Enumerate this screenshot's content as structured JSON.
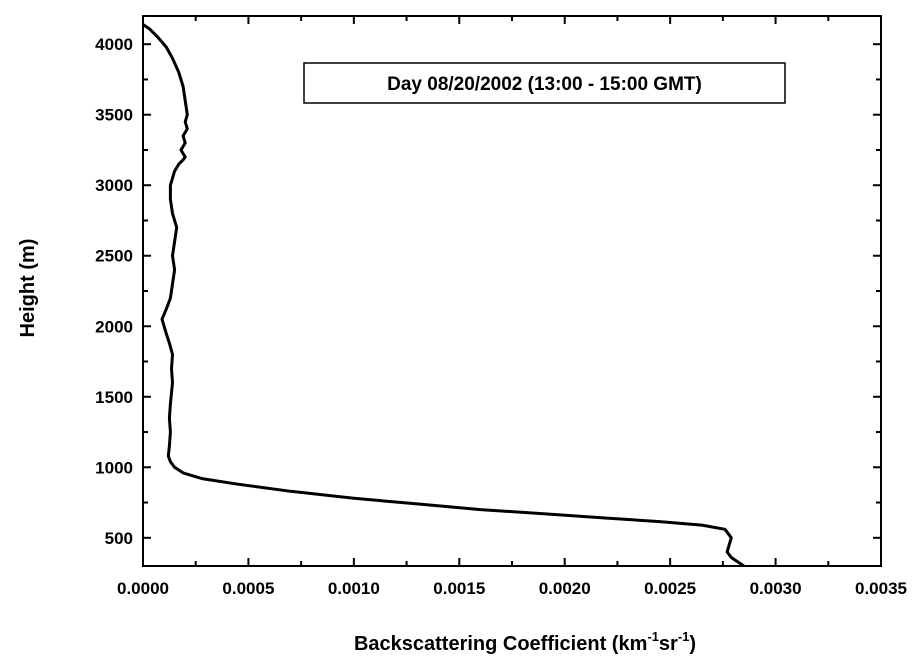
{
  "chart_data": {
    "type": "line",
    "xlabel": "Backscattering Coefficient (km",
    "xlabel_sup1": "-1",
    "xlabel_mid": "sr",
    "xlabel_sup2": "-1",
    "xlabel_end": ")",
    "ylabel": "Height (m)",
    "annotation": "Day 08/20/2002 (13:00 - 15:00 GMT)",
    "xlim": [
      0.0,
      0.0035
    ],
    "ylim": [
      300,
      4200
    ],
    "x_ticks": [
      {
        "value": 0.0,
        "label": "0.0000"
      },
      {
        "value": 0.0005,
        "label": "0.0005"
      },
      {
        "value": 0.001,
        "label": "0.0010"
      },
      {
        "value": 0.0015,
        "label": "0.0015"
      },
      {
        "value": 0.002,
        "label": "0.0020"
      },
      {
        "value": 0.0025,
        "label": "0.0025"
      },
      {
        "value": 0.003,
        "label": "0.0030"
      },
      {
        "value": 0.0035,
        "label": "0.0035"
      }
    ],
    "y_ticks": [
      {
        "value": 500,
        "label": "500"
      },
      {
        "value": 1000,
        "label": "1000"
      },
      {
        "value": 1500,
        "label": "1500"
      },
      {
        "value": 2000,
        "label": "2000"
      },
      {
        "value": 2500,
        "label": "2500"
      },
      {
        "value": 3000,
        "label": "3000"
      },
      {
        "value": 3500,
        "label": "3500"
      },
      {
        "value": 4000,
        "label": "4000"
      }
    ],
    "series": [
      {
        "points": [
          [
            0.00285,
            300
          ],
          [
            0.00282,
            330
          ],
          [
            0.00279,
            360
          ],
          [
            0.00277,
            400
          ],
          [
            0.00278,
            450
          ],
          [
            0.00279,
            500
          ],
          [
            0.00276,
            560
          ],
          [
            0.00265,
            590
          ],
          [
            0.00245,
            615
          ],
          [
            0.0022,
            640
          ],
          [
            0.0019,
            670
          ],
          [
            0.0016,
            700
          ],
          [
            0.0013,
            740
          ],
          [
            0.001,
            780
          ],
          [
            0.0007,
            830
          ],
          [
            0.00045,
            880
          ],
          [
            0.00028,
            920
          ],
          [
            0.00019,
            960
          ],
          [
            0.00015,
            1000
          ],
          [
            0.00013,
            1040
          ],
          [
            0.00012,
            1080
          ],
          [
            0.000125,
            1150
          ],
          [
            0.00013,
            1250
          ],
          [
            0.000125,
            1350
          ],
          [
            0.00013,
            1450
          ],
          [
            0.00014,
            1600
          ],
          [
            0.000135,
            1700
          ],
          [
            0.00014,
            1800
          ],
          [
            0.000125,
            1880
          ],
          [
            0.00011,
            1950
          ],
          [
            9e-05,
            2050
          ],
          [
            0.00011,
            2120
          ],
          [
            0.00013,
            2200
          ],
          [
            0.00014,
            2300
          ],
          [
            0.00015,
            2400
          ],
          [
            0.00014,
            2500
          ],
          [
            0.00015,
            2600
          ],
          [
            0.00016,
            2700
          ],
          [
            0.00014,
            2800
          ],
          [
            0.00013,
            2900
          ],
          [
            0.00013,
            3000
          ],
          [
            0.00015,
            3100
          ],
          [
            0.00017,
            3150
          ],
          [
            0.00019,
            3180
          ],
          [
            0.0002,
            3200
          ],
          [
            0.00018,
            3250
          ],
          [
            0.0002,
            3300
          ],
          [
            0.00019,
            3350
          ],
          [
            0.00021,
            3400
          ],
          [
            0.0002,
            3450
          ],
          [
            0.00021,
            3500
          ],
          [
            0.0002,
            3600
          ],
          [
            0.00019,
            3700
          ],
          [
            0.00017,
            3800
          ],
          [
            0.00014,
            3900
          ],
          [
            0.00011,
            3980
          ],
          [
            7e-05,
            4050
          ],
          [
            3e-05,
            4110
          ],
          [
            0.0,
            4140
          ]
        ]
      }
    ],
    "grid": false,
    "legend": "none"
  }
}
